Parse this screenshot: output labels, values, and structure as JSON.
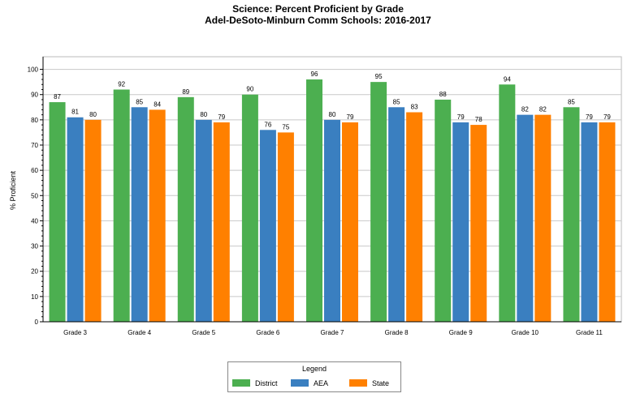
{
  "chart_data": {
    "type": "bar",
    "title": "Science: Percent Proficient by Grade",
    "subtitle": "Adel-DeSoto-Minburn Comm Schools: 2016-2017",
    "xlabel": "",
    "ylabel": "% Proficient",
    "ylim": [
      0,
      105
    ],
    "yticks": [
      0,
      10,
      20,
      30,
      40,
      50,
      60,
      70,
      80,
      90,
      100
    ],
    "grid": true,
    "legend_title": "Legend",
    "legend_position": "bottom",
    "categories": [
      "Grade 3",
      "Grade 4",
      "Grade 5",
      "Grade 6",
      "Grade 7",
      "Grade 8",
      "Grade 9",
      "Grade 10",
      "Grade 11"
    ],
    "series": [
      {
        "name": "District",
        "color": "#4caf50",
        "values": [
          87,
          92,
          89,
          90,
          96,
          95,
          88,
          94,
          85
        ]
      },
      {
        "name": "AEA",
        "color": "#3a7fc0",
        "values": [
          81,
          85,
          80,
          76,
          80,
          85,
          79,
          82,
          79
        ]
      },
      {
        "name": "State",
        "color": "#ff8000",
        "values": [
          80,
          84,
          79,
          75,
          79,
          83,
          78,
          82,
          79
        ]
      }
    ]
  }
}
